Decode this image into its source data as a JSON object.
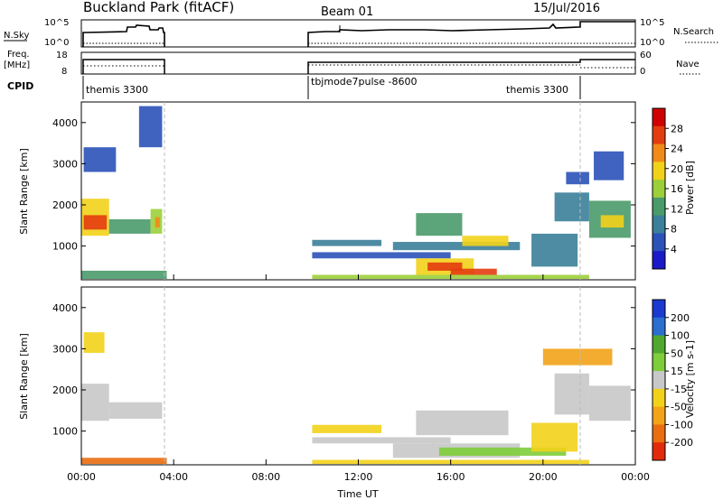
{
  "header": {
    "title": "Buckland Park (fitACF)",
    "beam": "Beam 01",
    "date": "15/Jul/2016"
  },
  "colors": {
    "power_scale": [
      "#1a1ac8",
      "#2a52b8",
      "#3b7f9a",
      "#4a9a6a",
      "#9ccf3a",
      "#f2d11a",
      "#f28a18",
      "#e33c10",
      "#d00000"
    ],
    "velocity_scale": [
      "#1a3ad2",
      "#2a6ed0",
      "#4fa82f",
      "#7ecd3a",
      "#c8c8c8",
      "#f2d11a",
      "#f2a318",
      "#ea6d10",
      "#e22a0c"
    ]
  },
  "chart_data": [
    {
      "type": "line",
      "panel": "noise",
      "left_label": "N.Sky",
      "right_label": "N.Search",
      "left_ticks": [
        "10^5",
        "10^0"
      ],
      "right_ticks": [
        "10^5",
        "10^0"
      ]
    },
    {
      "type": "line",
      "panel": "frequency",
      "left_label": "Freq.",
      "left_unit": "[MHz]",
      "right_label": "Nave",
      "left_ticks": [
        "18",
        "8"
      ],
      "right_ticks": [
        "60",
        "0"
      ]
    },
    {
      "type": "table",
      "panel": "cpid",
      "label": "CPID",
      "segments": [
        {
          "start": 0.0,
          "end": 3.7,
          "name": "themis 3300"
        },
        {
          "start": 10.0,
          "end": 22.0,
          "name": "tbjmode7pulse -8600"
        },
        {
          "start": 22.0,
          "end": 24.0,
          "name": "themis 3300"
        }
      ]
    },
    {
      "type": "heatmap",
      "panel": "power",
      "ylabel": "Slant Range [km]",
      "ylim": [
        180,
        4500
      ],
      "yticks": [
        "1000",
        "2000",
        "3000",
        "4000"
      ],
      "xlim": [
        0,
        24
      ],
      "colorbar_label": "Power [dB]",
      "colorbar_ticks": [
        "4",
        "8",
        "12",
        "16",
        "20",
        "24",
        "28"
      ],
      "colorbar_range": [
        0,
        30
      ],
      "cells": [
        {
          "t0": 0.0,
          "t1": 1.2,
          "r0": 1250,
          "r1": 2150,
          "v": 18
        },
        {
          "t0": 0.1,
          "t1": 1.1,
          "r0": 1400,
          "r1": 1750,
          "v": 24
        },
        {
          "t0": 1.2,
          "t1": 3.0,
          "r0": 1300,
          "r1": 1650,
          "v": 12
        },
        {
          "t0": 3.0,
          "t1": 3.5,
          "r0": 1300,
          "r1": 1900,
          "v": 14
        },
        {
          "t0": 3.2,
          "t1": 3.4,
          "r0": 1450,
          "r1": 1700,
          "v": 22
        },
        {
          "t0": 0.1,
          "t1": 1.5,
          "r0": 2800,
          "r1": 3400,
          "v": 6
        },
        {
          "t0": 2.5,
          "t1": 3.5,
          "r0": 3400,
          "r1": 4400,
          "v": 5
        },
        {
          "t0": 0.0,
          "t1": 3.7,
          "r0": 200,
          "r1": 400,
          "v": 10
        },
        {
          "t0": 10.0,
          "t1": 22.0,
          "r0": 200,
          "r1": 300,
          "v": 14
        },
        {
          "t0": 10.0,
          "t1": 13.0,
          "r0": 1000,
          "r1": 1150,
          "v": 8
        },
        {
          "t0": 10.0,
          "t1": 16.0,
          "r0": 700,
          "r1": 850,
          "v": 6
        },
        {
          "t0": 13.5,
          "t1": 19.0,
          "r0": 900,
          "r1": 1100,
          "v": 7
        },
        {
          "t0": 14.5,
          "t1": 17.0,
          "r0": 300,
          "r1": 700,
          "v": 18
        },
        {
          "t0": 15.0,
          "t1": 16.5,
          "r0": 400,
          "r1": 600,
          "v": 24
        },
        {
          "t0": 16.0,
          "t1": 18.0,
          "r0": 300,
          "r1": 450,
          "v": 26
        },
        {
          "t0": 16.5,
          "t1": 18.5,
          "r0": 1000,
          "r1": 1250,
          "v": 18
        },
        {
          "t0": 14.5,
          "t1": 16.5,
          "r0": 1250,
          "r1": 1800,
          "v": 10
        },
        {
          "t0": 19.5,
          "t1": 21.5,
          "r0": 500,
          "r1": 1300,
          "v": 7
        },
        {
          "t0": 20.5,
          "t1": 22.0,
          "r0": 1600,
          "r1": 2300,
          "v": 9
        },
        {
          "t0": 21.0,
          "t1": 22.0,
          "r0": 2500,
          "r1": 2800,
          "v": 6
        },
        {
          "t0": 22.0,
          "t1": 23.8,
          "r0": 1200,
          "r1": 2100,
          "v": 10
        },
        {
          "t0": 22.5,
          "t1": 23.5,
          "r0": 1450,
          "r1": 1750,
          "v": 18
        },
        {
          "t0": 22.2,
          "t1": 23.5,
          "r0": 2600,
          "r1": 3300,
          "v": 5
        }
      ]
    },
    {
      "type": "heatmap",
      "panel": "velocity",
      "ylabel": "Slant Range [km]",
      "xlabel": "Time UT",
      "ylim": [
        180,
        4500
      ],
      "yticks": [
        "1000",
        "2000",
        "3000",
        "4000"
      ],
      "xlim": [
        0,
        24
      ],
      "xticks": [
        "00:00",
        "04:00",
        "08:00",
        "12:00",
        "16:00",
        "20:00",
        "00:00"
      ],
      "colorbar_label": "Velocity [m s-1]",
      "colorbar_ticks": [
        "200",
        "100",
        "50",
        "15",
        "-15",
        "-50",
        "-100",
        "-200"
      ],
      "colorbar_range": [
        -250,
        250
      ],
      "cells": [
        {
          "t0": 0.0,
          "t1": 1.2,
          "r0": 1250,
          "r1": 2150,
          "v": 5
        },
        {
          "t0": 1.2,
          "t1": 3.5,
          "r0": 1300,
          "r1": 1700,
          "v": 0
        },
        {
          "t0": 0.1,
          "t1": 1.0,
          "r0": 2900,
          "r1": 3400,
          "v": -40
        },
        {
          "t0": 0.0,
          "t1": 3.7,
          "r0": 200,
          "r1": 350,
          "v": -180
        },
        {
          "t0": 10.0,
          "t1": 22.0,
          "r0": 200,
          "r1": 300,
          "v": -60
        },
        {
          "t0": 10.0,
          "t1": 13.0,
          "r0": 950,
          "r1": 1150,
          "v": -30
        },
        {
          "t0": 10.0,
          "t1": 16.0,
          "r0": 700,
          "r1": 850,
          "v": -20
        },
        {
          "t0": 13.5,
          "t1": 19.0,
          "r0": 350,
          "r1": 700,
          "v": -25
        },
        {
          "t0": 14.5,
          "t1": 18.5,
          "r0": 900,
          "r1": 1500,
          "v": 0
        },
        {
          "t0": 15.5,
          "t1": 21.0,
          "r0": 400,
          "r1": 600,
          "v": 40
        },
        {
          "t0": 19.5,
          "t1": 21.5,
          "r0": 500,
          "r1": 1200,
          "v": -45
        },
        {
          "t0": 20.5,
          "t1": 22.0,
          "r0": 1400,
          "r1": 2400,
          "v": 5
        },
        {
          "t0": 22.0,
          "t1": 23.8,
          "r0": 1250,
          "r1": 2100,
          "v": -10
        },
        {
          "t0": 20.0,
          "t1": 23.0,
          "r0": 2600,
          "r1": 3000,
          "v": -110
        }
      ]
    }
  ]
}
